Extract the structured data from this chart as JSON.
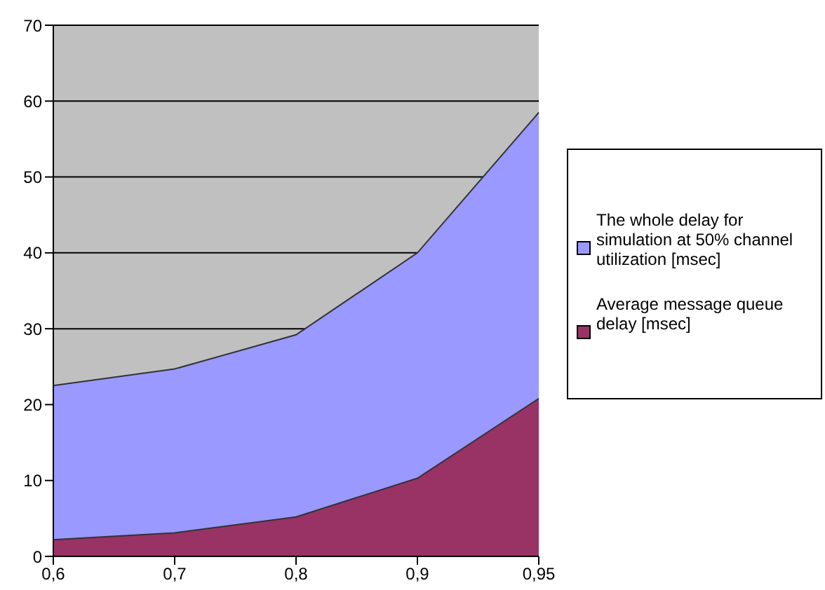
{
  "chart_data": {
    "type": "area",
    "categories": [
      "0,6",
      "0,7",
      "0,8",
      "0,9",
      "0,95"
    ],
    "series": [
      {
        "name": "The whole delay for simulation at 50% channel utilization [msec]",
        "color": "#9999ff",
        "values": [
          22.5,
          24.7,
          29.2,
          40,
          58.5
        ]
      },
      {
        "name": "Average message queue delay [msec]",
        "color": "#993366",
        "values": [
          2.2,
          3.1,
          5.2,
          10.3,
          20.8
        ]
      }
    ],
    "ylim": [
      0,
      70
    ],
    "yticks": [
      0,
      10,
      20,
      30,
      40,
      50,
      60,
      70
    ],
    "grid": "y",
    "legend": "right"
  }
}
